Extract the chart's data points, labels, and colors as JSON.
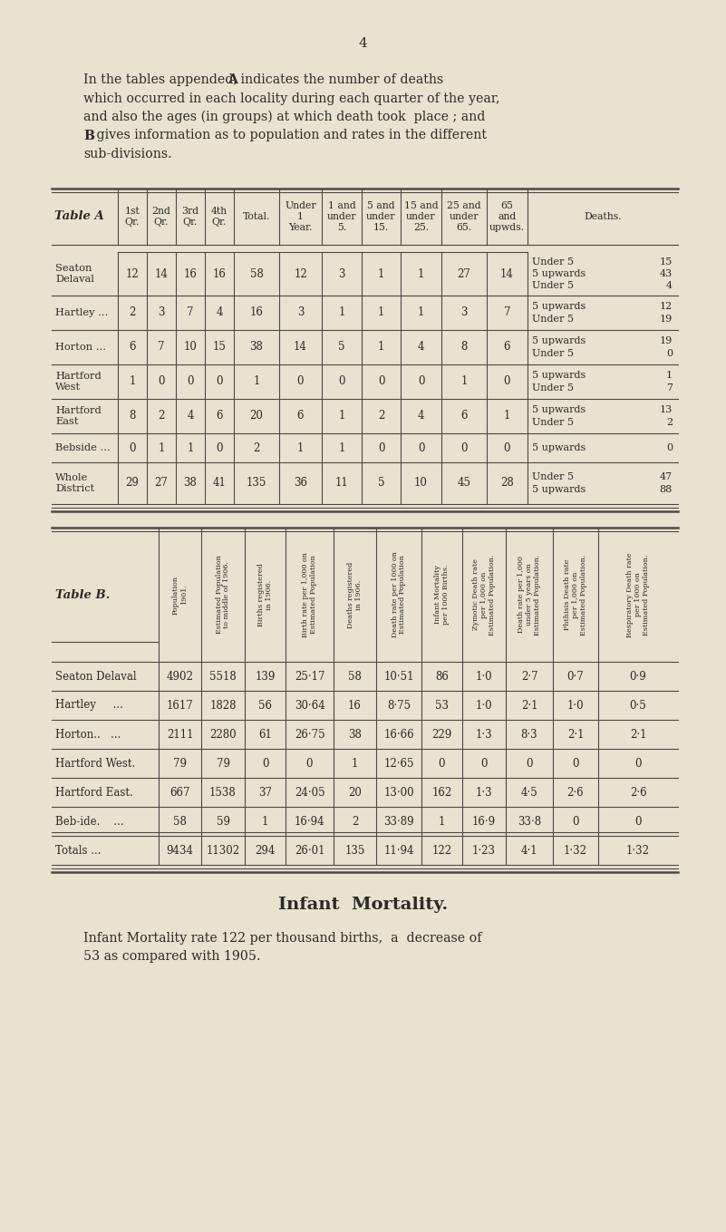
{
  "bg_color": "#e8e2ce",
  "page_number": "4",
  "tableA_rows_data": [
    [
      "Seaton\nDelaval",
      "12",
      "14",
      "16",
      "16",
      "58",
      "12",
      "3",
      "1",
      "1",
      "27",
      "14",
      [
        [
          "Under 5",
          "15"
        ],
        [
          "5 upwards",
          "43"
        ],
        [
          "Under 5",
          "4"
        ]
      ]
    ],
    [
      "Hartley ...",
      "2",
      "3",
      "7",
      "4",
      "16",
      "3",
      "1",
      "1",
      "1",
      "3",
      "7",
      [
        [
          "5 upwards",
          "12"
        ],
        [
          "Under 5",
          "19"
        ]
      ]
    ],
    [
      "Horton ...",
      "6",
      "7",
      "10",
      "15",
      "38",
      "14",
      "5",
      "1",
      "4",
      "8",
      "6",
      [
        [
          "5 upwards",
          "19"
        ],
        [
          "Under 5",
          "0"
        ]
      ]
    ],
    [
      "Hartford\nWest",
      "1",
      "0",
      "0",
      "0",
      "1",
      "0",
      "0",
      "0",
      "0",
      "1",
      "0",
      [
        [
          "5 upwards",
          "1"
        ],
        [
          "Under 5",
          "7"
        ]
      ]
    ],
    [
      "Hartford\nEast",
      "8",
      "2",
      "4",
      "6",
      "20",
      "6",
      "1",
      "2",
      "4",
      "6",
      "1",
      [
        [
          "5 upwards",
          "13"
        ],
        [
          "Under 5",
          "2"
        ]
      ]
    ],
    [
      "Bebside ...",
      "0",
      "1",
      "1",
      "0",
      "2",
      "1",
      "1",
      "0",
      "0",
      "0",
      "0",
      [
        [
          "5 upwards",
          "0"
        ]
      ]
    ],
    [
      "Whole\nDistrict",
      "29",
      "27",
      "38",
      "41",
      "135",
      "36",
      "11",
      "5",
      "10",
      "45",
      "28",
      [
        [
          "Under 5",
          "47"
        ],
        [
          "5 upwards",
          "88"
        ]
      ]
    ]
  ],
  "tableB_rows_data": [
    [
      "Seaton Delaval",
      "4902",
      "5518",
      "139",
      "25·17",
      "58",
      "10·51",
      "86",
      "1·0",
      "2·7",
      "0·7",
      "0·9"
    ],
    [
      "Hartley     ...",
      "1617",
      "1828",
      "56",
      "30·64",
      "16",
      "8·75",
      "53",
      "1·0",
      "2·1",
      "1·0",
      "0·5"
    ],
    [
      "Horton..   ...",
      "2111",
      "2280",
      "61",
      "26·75",
      "38",
      "16·66",
      "229",
      "1·3",
      "8·3",
      "2·1",
      "2·1"
    ],
    [
      "Hartford West.",
      "79",
      "79",
      "0",
      "0",
      "1",
      "12·65",
      "0",
      "0",
      "0",
      "0",
      "0"
    ],
    [
      "Hartford East.",
      "667",
      "1538",
      "37",
      "24·05",
      "20",
      "13·00",
      "162",
      "1·3",
      "4·5",
      "2·6",
      "2·6"
    ],
    [
      "Beb-ide.    ...",
      "58",
      "59",
      "1",
      "16·94",
      "2",
      "33·89",
      "1",
      "16·9",
      "33·8",
      "0",
      "0"
    ],
    [
      "Totals ...",
      "9434",
      "11302",
      "294",
      "26·01",
      "135",
      "11·94",
      "122",
      "1·23",
      "4·1",
      "1·32",
      "1·32"
    ]
  ],
  "tableB_col_headers": [
    "Population\n1901.",
    "Estimated Population\nto middle of 1906.",
    "Births registered\nin 1906.",
    "Birth rate per 1,000 on\nEstimated Population",
    "Deaths registered\nin 1906.",
    "Death rate per 1000 on\nEstimated Population",
    "Infant Mortality\nper 1000 Births.",
    "Zymotic Death rate\nper 1,000 on\nEstimated Population.",
    "Death rate per 1,000\nunder 5 years on\nEstimated Population.",
    "Phthisis Death rate\nper 1,000 on\nEstimated Population.",
    "Respiratory Death rate\nper 1000 on\nEstimated Population."
  ],
  "infant_mortality_title": "Infant  Mortality.",
  "infant_mortality_text": "Infant Mortality rate 122 per thousand births,  a  decrease of\n53 as compared with 1905."
}
